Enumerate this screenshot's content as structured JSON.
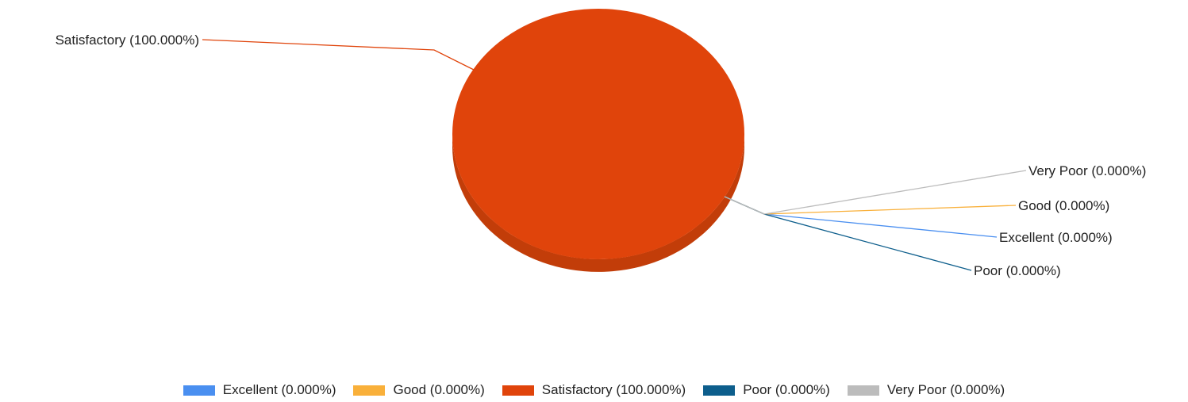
{
  "chart_data": {
    "type": "pie",
    "style": "3d",
    "title": "",
    "slices": [
      {
        "label": "Excellent",
        "value": 0.0,
        "display": "Excellent (0.000%)",
        "color": "#4a8ff0"
      },
      {
        "label": "Good",
        "value": 0.0,
        "display": "Good (0.000%)",
        "color": "#f9b03a"
      },
      {
        "label": "Satisfactory",
        "value": 100.0,
        "display": "Satisfactory (100.000%)",
        "color": "#e0440b"
      },
      {
        "label": "Poor",
        "value": 0.0,
        "display": "Poor (0.000%)",
        "color": "#0d5e8c"
      },
      {
        "label": "Very Poor",
        "value": 0.0,
        "display": "Very Poor (0.000%)",
        "color": "#bcbcbc"
      }
    ],
    "legend_position": "bottom",
    "data_labels": "outside-callouts",
    "grid": false
  }
}
